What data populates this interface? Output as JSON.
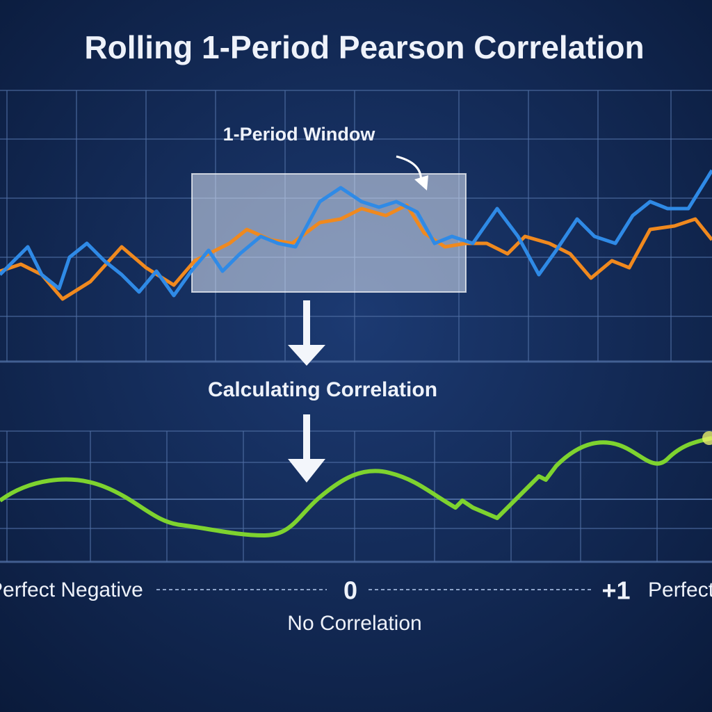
{
  "header": {
    "title": "Rolling 1-Period Pearson Correlation"
  },
  "window_label": "1-Period Window",
  "step_label": "Calculating Correlation",
  "scale": {
    "left": "Perfect Negative",
    "center": "0",
    "center_caption": "No Correlation",
    "right_value": "+1",
    "right": "Perfect Positive"
  }
}
